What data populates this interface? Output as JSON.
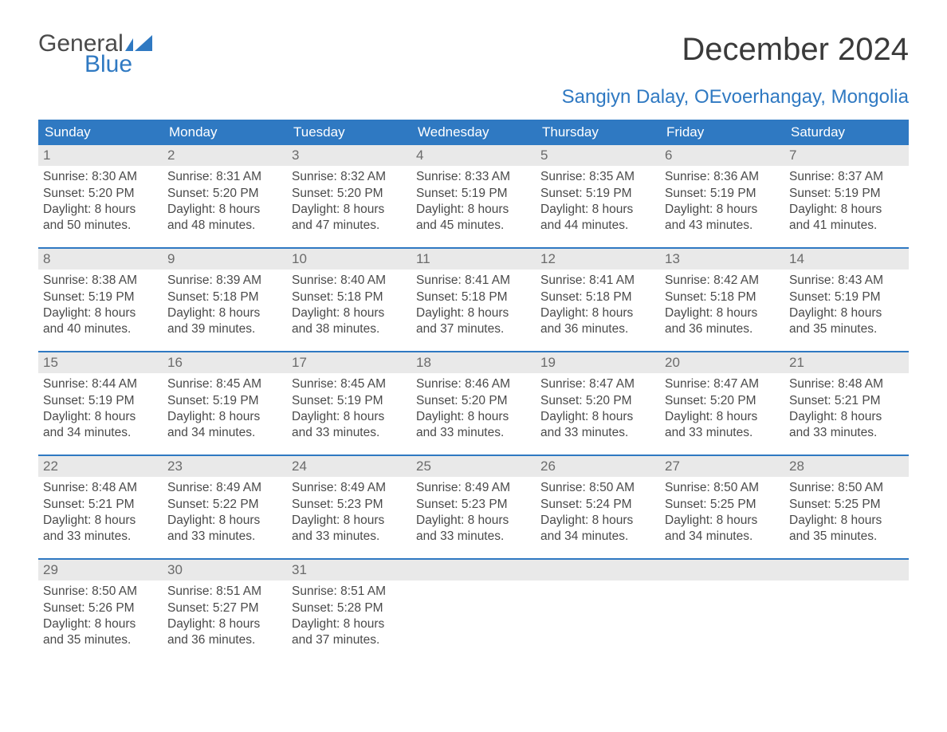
{
  "logo": {
    "text_top": "General",
    "text_bottom": "Blue",
    "accent_color": "#2f79c2"
  },
  "title": "December 2024",
  "location": "Sangiyn Dalay, OEvoerhangay, Mongolia",
  "colors": {
    "header_bg": "#2f79c2",
    "header_text": "#ffffff",
    "daynum_bg": "#e9e9e9",
    "daynum_text": "#6b6b6b",
    "body_text": "#4a4a4a",
    "week_border": "#2f79c2",
    "page_bg": "#ffffff"
  },
  "typography": {
    "title_fontsize": 40,
    "location_fontsize": 24,
    "dayheader_fontsize": 17,
    "daynum_fontsize": 17,
    "body_fontsize": 15.5,
    "font_family": "Arial"
  },
  "layout": {
    "columns": 7,
    "rows": 5,
    "cell_min_height": 128
  },
  "day_names": [
    "Sunday",
    "Monday",
    "Tuesday",
    "Wednesday",
    "Thursday",
    "Friday",
    "Saturday"
  ],
  "weeks": [
    [
      {
        "n": "1",
        "sr": "Sunrise: 8:30 AM",
        "ss": "Sunset: 5:20 PM",
        "d1": "Daylight: 8 hours",
        "d2": "and 50 minutes."
      },
      {
        "n": "2",
        "sr": "Sunrise: 8:31 AM",
        "ss": "Sunset: 5:20 PM",
        "d1": "Daylight: 8 hours",
        "d2": "and 48 minutes."
      },
      {
        "n": "3",
        "sr": "Sunrise: 8:32 AM",
        "ss": "Sunset: 5:20 PM",
        "d1": "Daylight: 8 hours",
        "d2": "and 47 minutes."
      },
      {
        "n": "4",
        "sr": "Sunrise: 8:33 AM",
        "ss": "Sunset: 5:19 PM",
        "d1": "Daylight: 8 hours",
        "d2": "and 45 minutes."
      },
      {
        "n": "5",
        "sr": "Sunrise: 8:35 AM",
        "ss": "Sunset: 5:19 PM",
        "d1": "Daylight: 8 hours",
        "d2": "and 44 minutes."
      },
      {
        "n": "6",
        "sr": "Sunrise: 8:36 AM",
        "ss": "Sunset: 5:19 PM",
        "d1": "Daylight: 8 hours",
        "d2": "and 43 minutes."
      },
      {
        "n": "7",
        "sr": "Sunrise: 8:37 AM",
        "ss": "Sunset: 5:19 PM",
        "d1": "Daylight: 8 hours",
        "d2": "and 41 minutes."
      }
    ],
    [
      {
        "n": "8",
        "sr": "Sunrise: 8:38 AM",
        "ss": "Sunset: 5:19 PM",
        "d1": "Daylight: 8 hours",
        "d2": "and 40 minutes."
      },
      {
        "n": "9",
        "sr": "Sunrise: 8:39 AM",
        "ss": "Sunset: 5:18 PM",
        "d1": "Daylight: 8 hours",
        "d2": "and 39 minutes."
      },
      {
        "n": "10",
        "sr": "Sunrise: 8:40 AM",
        "ss": "Sunset: 5:18 PM",
        "d1": "Daylight: 8 hours",
        "d2": "and 38 minutes."
      },
      {
        "n": "11",
        "sr": "Sunrise: 8:41 AM",
        "ss": "Sunset: 5:18 PM",
        "d1": "Daylight: 8 hours",
        "d2": "and 37 minutes."
      },
      {
        "n": "12",
        "sr": "Sunrise: 8:41 AM",
        "ss": "Sunset: 5:18 PM",
        "d1": "Daylight: 8 hours",
        "d2": "and 36 minutes."
      },
      {
        "n": "13",
        "sr": "Sunrise: 8:42 AM",
        "ss": "Sunset: 5:18 PM",
        "d1": "Daylight: 8 hours",
        "d2": "and 36 minutes."
      },
      {
        "n": "14",
        "sr": "Sunrise: 8:43 AM",
        "ss": "Sunset: 5:19 PM",
        "d1": "Daylight: 8 hours",
        "d2": "and 35 minutes."
      }
    ],
    [
      {
        "n": "15",
        "sr": "Sunrise: 8:44 AM",
        "ss": "Sunset: 5:19 PM",
        "d1": "Daylight: 8 hours",
        "d2": "and 34 minutes."
      },
      {
        "n": "16",
        "sr": "Sunrise: 8:45 AM",
        "ss": "Sunset: 5:19 PM",
        "d1": "Daylight: 8 hours",
        "d2": "and 34 minutes."
      },
      {
        "n": "17",
        "sr": "Sunrise: 8:45 AM",
        "ss": "Sunset: 5:19 PM",
        "d1": "Daylight: 8 hours",
        "d2": "and 33 minutes."
      },
      {
        "n": "18",
        "sr": "Sunrise: 8:46 AM",
        "ss": "Sunset: 5:20 PM",
        "d1": "Daylight: 8 hours",
        "d2": "and 33 minutes."
      },
      {
        "n": "19",
        "sr": "Sunrise: 8:47 AM",
        "ss": "Sunset: 5:20 PM",
        "d1": "Daylight: 8 hours",
        "d2": "and 33 minutes."
      },
      {
        "n": "20",
        "sr": "Sunrise: 8:47 AM",
        "ss": "Sunset: 5:20 PM",
        "d1": "Daylight: 8 hours",
        "d2": "and 33 minutes."
      },
      {
        "n": "21",
        "sr": "Sunrise: 8:48 AM",
        "ss": "Sunset: 5:21 PM",
        "d1": "Daylight: 8 hours",
        "d2": "and 33 minutes."
      }
    ],
    [
      {
        "n": "22",
        "sr": "Sunrise: 8:48 AM",
        "ss": "Sunset: 5:21 PM",
        "d1": "Daylight: 8 hours",
        "d2": "and 33 minutes."
      },
      {
        "n": "23",
        "sr": "Sunrise: 8:49 AM",
        "ss": "Sunset: 5:22 PM",
        "d1": "Daylight: 8 hours",
        "d2": "and 33 minutes."
      },
      {
        "n": "24",
        "sr": "Sunrise: 8:49 AM",
        "ss": "Sunset: 5:23 PM",
        "d1": "Daylight: 8 hours",
        "d2": "and 33 minutes."
      },
      {
        "n": "25",
        "sr": "Sunrise: 8:49 AM",
        "ss": "Sunset: 5:23 PM",
        "d1": "Daylight: 8 hours",
        "d2": "and 33 minutes."
      },
      {
        "n": "26",
        "sr": "Sunrise: 8:50 AM",
        "ss": "Sunset: 5:24 PM",
        "d1": "Daylight: 8 hours",
        "d2": "and 34 minutes."
      },
      {
        "n": "27",
        "sr": "Sunrise: 8:50 AM",
        "ss": "Sunset: 5:25 PM",
        "d1": "Daylight: 8 hours",
        "d2": "and 34 minutes."
      },
      {
        "n": "28",
        "sr": "Sunrise: 8:50 AM",
        "ss": "Sunset: 5:25 PM",
        "d1": "Daylight: 8 hours",
        "d2": "and 35 minutes."
      }
    ],
    [
      {
        "n": "29",
        "sr": "Sunrise: 8:50 AM",
        "ss": "Sunset: 5:26 PM",
        "d1": "Daylight: 8 hours",
        "d2": "and 35 minutes."
      },
      {
        "n": "30",
        "sr": "Sunrise: 8:51 AM",
        "ss": "Sunset: 5:27 PM",
        "d1": "Daylight: 8 hours",
        "d2": "and 36 minutes."
      },
      {
        "n": "31",
        "sr": "Sunrise: 8:51 AM",
        "ss": "Sunset: 5:28 PM",
        "d1": "Daylight: 8 hours",
        "d2": "and 37 minutes."
      },
      {
        "empty": true
      },
      {
        "empty": true
      },
      {
        "empty": true
      },
      {
        "empty": true
      }
    ]
  ]
}
